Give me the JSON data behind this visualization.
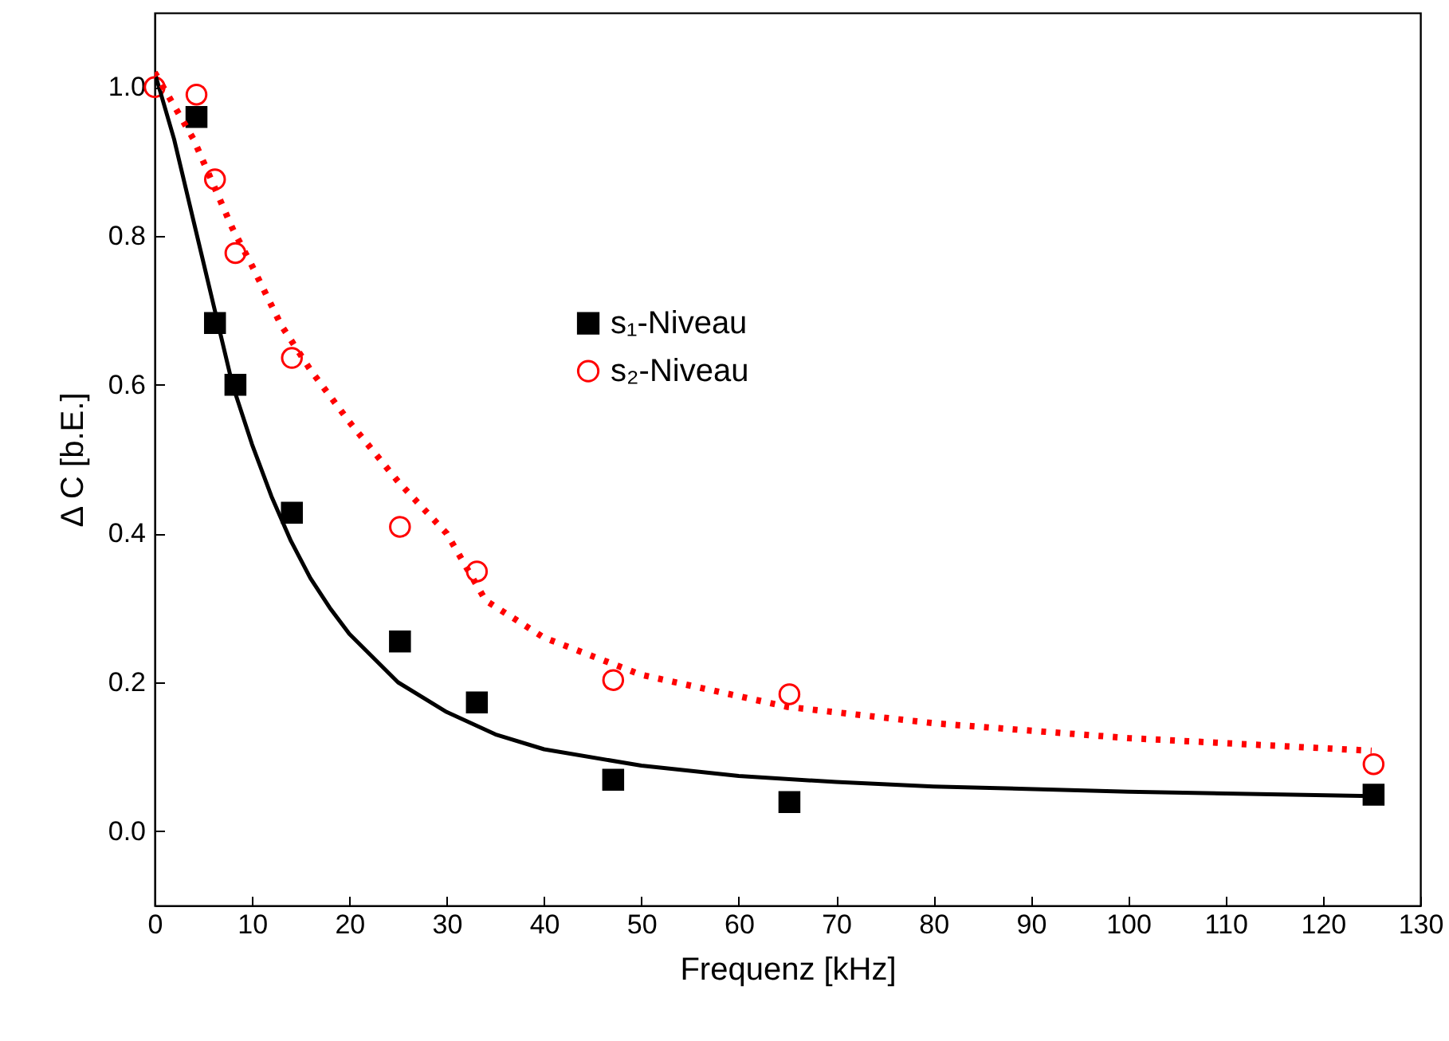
{
  "chart_data": {
    "type": "scatter",
    "xlabel": "Frequenz [kHz]",
    "ylabel": "Δ C [b.E.]",
    "xlim": [
      0,
      130
    ],
    "ylim": [
      -0.1,
      1.1
    ],
    "xticks": [
      0,
      10,
      20,
      30,
      40,
      50,
      60,
      70,
      80,
      90,
      100,
      110,
      120,
      130
    ],
    "yticks": [
      {
        "value": 0,
        "label": "0.0"
      },
      0.2,
      0.4,
      0.6,
      0.8,
      {
        "value": 1,
        "label": "1.0"
      }
    ],
    "grid": false,
    "legend": "center",
    "series": [
      {
        "name": "s₁-Niveau",
        "marker": "square",
        "color": "#000000",
        "x": [
          4.3,
          6.2,
          8.3,
          14.1,
          25.2,
          33.1,
          47.1,
          65.2,
          125.2
        ],
        "values": [
          0.96,
          0.683,
          0.6,
          0.428,
          0.255,
          0.173,
          0.069,
          0.039,
          0.049
        ]
      },
      {
        "name": "s₂-Niveau",
        "marker": "circle",
        "color": "#ff0000",
        "x": [
          0,
          4.3,
          6.2,
          8.3,
          14.1,
          25.2,
          33.1,
          47.1,
          65.2,
          125.2
        ],
        "values": [
          1.0,
          0.99,
          0.876,
          0.777,
          0.636,
          0.409,
          0.349,
          0.203,
          0.184,
          0.09
        ]
      },
      {
        "type": "line",
        "line_style": "solid",
        "color": "#000000",
        "x": [
          0,
          2,
          4,
          6,
          8,
          10,
          12,
          14,
          16,
          18,
          20,
          25,
          30,
          35,
          40,
          50,
          60,
          70,
          80,
          100,
          125
        ],
        "values": [
          1.02,
          0.93,
          0.82,
          0.71,
          0.6,
          0.52,
          0.45,
          0.39,
          0.34,
          0.3,
          0.265,
          0.2,
          0.16,
          0.13,
          0.11,
          0.088,
          0.074,
          0.066,
          0.06,
          0.053,
          0.047
        ]
      },
      {
        "type": "line",
        "line_style": "dotted",
        "color": "#ff0000",
        "x": [
          0,
          4,
          6,
          8,
          10,
          13,
          16,
          20,
          25,
          30,
          34,
          40,
          50,
          65,
          80,
          100,
          125
        ],
        "values": [
          1.02,
          0.93,
          0.87,
          0.81,
          0.76,
          0.68,
          0.62,
          0.55,
          0.47,
          0.4,
          0.31,
          0.26,
          0.21,
          0.167,
          0.145,
          0.125,
          0.108
        ]
      }
    ]
  }
}
